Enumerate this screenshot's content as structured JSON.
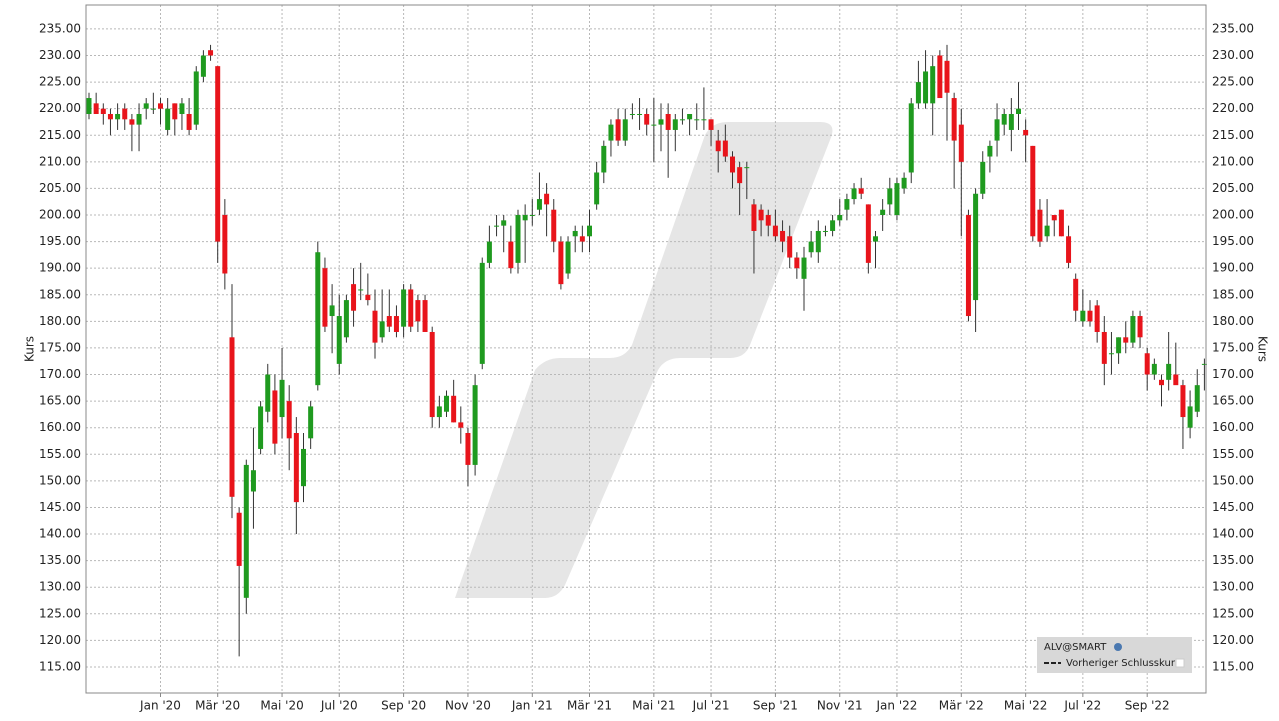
{
  "chart_data": {
    "type": "candlestick",
    "y_label": "Kurs",
    "categories": [
      null,
      null,
      null,
      null,
      null,
      null,
      null,
      null,
      null,
      null,
      "Jan '20",
      null,
      null,
      null,
      null,
      null,
      null,
      null,
      "Mär '20",
      null,
      null,
      null,
      null,
      null,
      null,
      null,
      null,
      "Mai '20",
      null,
      null,
      null,
      null,
      null,
      null,
      null,
      "Jul '20",
      null,
      null,
      null,
      null,
      null,
      null,
      null,
      null,
      "Sep '20",
      null,
      null,
      null,
      null,
      null,
      null,
      null,
      null,
      "Nov '20",
      null,
      null,
      null,
      null,
      null,
      null,
      null,
      null,
      "Jan '21",
      null,
      null,
      null,
      null,
      null,
      null,
      null,
      "Mär '21",
      null,
      null,
      null,
      null,
      null,
      null,
      null,
      null,
      "Mai '21",
      null,
      null,
      null,
      null,
      null,
      null,
      null,
      "Jul '21",
      null,
      null,
      null,
      null,
      null,
      null,
      null,
      null,
      "Sep '21",
      null,
      null,
      null,
      null,
      null,
      null,
      null,
      null,
      "Nov '21",
      null,
      null,
      null,
      null,
      null,
      null,
      null,
      "Jan '22",
      null,
      null,
      null,
      null,
      null,
      null,
      null,
      null,
      "Mär '22",
      null,
      null,
      null,
      null,
      null,
      null,
      null,
      null,
      "Mai '22",
      null,
      null,
      null,
      null,
      null,
      null,
      null,
      "Jul '22",
      null,
      null,
      null,
      null,
      null,
      null,
      null,
      null,
      "Sep '22",
      null,
      null,
      null,
      null,
      null,
      null,
      null,
      null
    ],
    "open": [
      219,
      221,
      220,
      219,
      218,
      220,
      218,
      217,
      220,
      220,
      221,
      216,
      221,
      219,
      219,
      217,
      226,
      231,
      228,
      200,
      177,
      144,
      128,
      148,
      156,
      163,
      167,
      162,
      165,
      159,
      149,
      158,
      168,
      190,
      181,
      172,
      177,
      187,
      186,
      185,
      182,
      177,
      181,
      181,
      179,
      186,
      184,
      184,
      178,
      162,
      163,
      166,
      161,
      159,
      153,
      172,
      191,
      198,
      198,
      195,
      191,
      199,
      200,
      201,
      204,
      201,
      195,
      189,
      196,
      196,
      196,
      202,
      208,
      214,
      218,
      214,
      219,
      219,
      219,
      217,
      217,
      219,
      216,
      218,
      218,
      218,
      218,
      218,
      214,
      214,
      211,
      209,
      209,
      202,
      201,
      200,
      198,
      197,
      196,
      192,
      188,
      193,
      193,
      197,
      197,
      199,
      201,
      203,
      205,
      202,
      195,
      200,
      202,
      200,
      205,
      208,
      221,
      221,
      221,
      230,
      229,
      222,
      217,
      200,
      184,
      204,
      211,
      214,
      217,
      216,
      219,
      216,
      213,
      201,
      196,
      200,
      201,
      196,
      188,
      180,
      182,
      183,
      178,
      174,
      174,
      177,
      176,
      181,
      174,
      170,
      169,
      169,
      170,
      168,
      160,
      163,
      172
    ],
    "high": [
      223,
      223,
      221,
      220,
      221,
      221,
      219,
      221,
      222,
      223,
      222,
      222,
      221,
      222,
      222,
      228,
      231,
      232,
      228,
      203,
      187,
      145,
      154,
      160,
      165,
      172,
      170,
      175,
      168,
      162,
      159,
      165,
      195,
      192,
      187,
      185,
      185,
      190,
      191,
      189,
      186,
      186,
      186,
      183,
      187,
      187,
      185,
      185,
      179,
      166,
      167,
      169,
      164,
      160,
      170,
      192,
      198,
      200,
      200,
      198,
      201,
      202,
      203,
      208,
      206,
      203,
      196,
      196,
      198,
      198,
      201,
      210,
      214,
      218,
      220,
      220,
      221,
      222,
      220,
      222,
      221,
      221,
      219,
      220,
      219,
      221,
      224,
      218,
      216,
      217,
      212,
      210,
      210,
      203,
      202,
      201,
      201,
      199,
      198,
      193,
      194,
      197,
      199,
      198,
      200,
      203,
      204,
      206,
      207,
      202,
      197,
      203,
      207,
      207,
      208,
      222,
      229,
      231,
      230,
      231,
      232,
      223,
      220,
      201,
      205,
      212,
      214,
      221,
      220,
      222,
      225,
      218,
      213,
      203,
      203,
      200,
      201,
      198,
      189,
      186,
      184,
      184,
      181,
      178,
      177,
      180,
      182,
      182,
      175,
      173,
      170,
      178,
      176,
      169,
      167,
      171,
      173
    ],
    "low": [
      218,
      219,
      217,
      215,
      216,
      216,
      212,
      212,
      218,
      219,
      217,
      215,
      215,
      216,
      215,
      216,
      225,
      229,
      191,
      186,
      143,
      117,
      125,
      141,
      155,
      161,
      155,
      158,
      152,
      140,
      146,
      156,
      167,
      178,
      174,
      170,
      176,
      179,
      184,
      183,
      173,
      176,
      178,
      177,
      177,
      178,
      178,
      179,
      160,
      160,
      162,
      161,
      157,
      149,
      151,
      171,
      190,
      196,
      193,
      189,
      189,
      191,
      198,
      200,
      196,
      193,
      186,
      188,
      193,
      193,
      193,
      201,
      206,
      211,
      213,
      213,
      218,
      216,
      215,
      210,
      212,
      207,
      212,
      217,
      215,
      216,
      216,
      213,
      208,
      210,
      205,
      200,
      203,
      189,
      196,
      196,
      195,
      193,
      190,
      188,
      182,
      192,
      191,
      196,
      196,
      198,
      199,
      202,
      203,
      189,
      190,
      197,
      200,
      199,
      204,
      206,
      220,
      220,
      215,
      223,
      214,
      205,
      196,
      180,
      178,
      203,
      208,
      211,
      215,
      212,
      216,
      210,
      195,
      194,
      195,
      196,
      196,
      190,
      180,
      179,
      179,
      176,
      168,
      170,
      172,
      174,
      175,
      175,
      167,
      169,
      164,
      167,
      169,
      156,
      158,
      162,
      167
    ],
    "close": [
      222,
      219,
      219,
      218,
      219,
      218,
      217,
      219,
      221,
      220,
      220,
      220,
      218,
      221,
      216,
      227,
      230,
      230,
      195,
      189,
      147,
      134,
      153,
      152,
      164,
      170,
      157,
      169,
      158,
      146,
      156,
      164,
      193,
      179,
      183,
      181,
      184,
      182,
      186,
      184,
      176,
      180,
      179,
      178,
      186,
      179,
      180,
      178,
      162,
      164,
      166,
      161,
      160,
      153,
      168,
      191,
      195,
      198,
      199,
      190,
      200,
      200,
      200,
      203,
      202,
      195,
      187,
      195,
      197,
      195,
      198,
      208,
      213,
      217,
      214,
      218,
      219,
      219,
      217,
      217,
      218,
      216,
      218,
      218,
      219,
      218,
      218,
      216,
      212,
      211,
      208,
      206,
      209,
      197,
      199,
      198,
      196,
      195,
      192,
      190,
      192,
      195,
      197,
      197,
      199,
      200,
      203,
      205,
      204,
      191,
      196,
      201,
      205,
      206,
      207,
      221,
      225,
      227,
      228,
      222,
      223,
      214,
      210,
      181,
      204,
      210,
      213,
      218,
      219,
      219,
      220,
      215,
      196,
      195,
      198,
      199,
      196,
      191,
      182,
      182,
      180,
      178,
      172,
      174,
      177,
      176,
      181,
      177,
      170,
      172,
      168,
      172,
      168,
      162,
      164,
      168,
      172
    ],
    "up_color": "#1f9a1f",
    "down_color": "#e8141b",
    "ylim": [
      110.1,
      239.5
    ],
    "yticks": [
      {
        "value": 115,
        "label": "115.00"
      },
      {
        "value": 120,
        "label": "120.00"
      },
      {
        "value": 125,
        "label": "125.00"
      },
      {
        "value": 130,
        "label": "130.00"
      },
      {
        "value": 135,
        "label": "135.00"
      },
      {
        "value": 140,
        "label": "140.00"
      },
      {
        "value": 145,
        "label": "145.00"
      },
      {
        "value": 150,
        "label": "150.00"
      },
      {
        "value": 155,
        "label": "155.00"
      },
      {
        "value": 160,
        "label": "160.00"
      },
      {
        "value": 165,
        "label": "165.00"
      },
      {
        "value": 170,
        "label": "170.00"
      },
      {
        "value": 175,
        "label": "175.00"
      },
      {
        "value": 180,
        "label": "180.00"
      },
      {
        "value": 185,
        "label": "185.00"
      },
      {
        "value": 190,
        "label": "190.00"
      },
      {
        "value": 195,
        "label": "195.00"
      },
      {
        "value": 200,
        "label": "200.00"
      },
      {
        "value": 205,
        "label": "205.00"
      },
      {
        "value": 210,
        "label": "210.00"
      },
      {
        "value": 215,
        "label": "215.00"
      },
      {
        "value": 220,
        "label": "220.00"
      },
      {
        "value": 225,
        "label": "225.00"
      },
      {
        "value": 230,
        "label": "230.00"
      },
      {
        "value": 235,
        "label": "235.00"
      }
    ],
    "grid": true,
    "legend": {
      "name": "ALV@SMART",
      "previous_close_label": "Vorheriger Schlusskurs"
    }
  }
}
